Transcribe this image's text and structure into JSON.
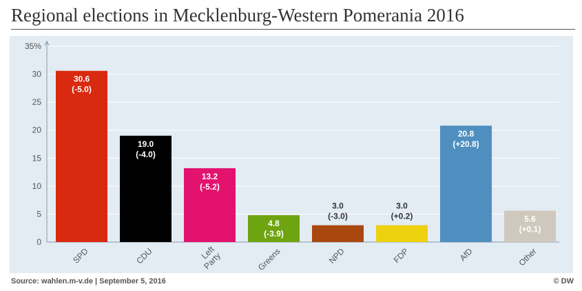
{
  "title": "Regional elections in Mecklenburg-Western Pomerania 2016",
  "footer": {
    "source": "Source: wahlen.m-v.de | September 5, 2016",
    "credit": "© DW"
  },
  "chart_data": {
    "type": "bar",
    "title": "Regional elections in Mecklenburg-Western Pomerania 2016",
    "ylim": [
      0,
      35
    ],
    "y_ticks": [
      "0",
      "5",
      "10",
      "15",
      "20",
      "25",
      "30",
      "35%"
    ],
    "y_tick_values": [
      0,
      5,
      10,
      15,
      20,
      25,
      30,
      35
    ],
    "grid": true,
    "categories": [
      "SPD",
      "CDU",
      "Left Party",
      "Greens",
      "NPD",
      "FDP",
      "AfD",
      "Other"
    ],
    "category_lines": [
      [
        "SPD"
      ],
      [
        "CDU"
      ],
      [
        "Left",
        "Party"
      ],
      [
        "Greens"
      ],
      [
        "NPD"
      ],
      [
        "FDP"
      ],
      [
        "AfD"
      ],
      [
        "Other"
      ]
    ],
    "values": [
      30.6,
      19.0,
      13.2,
      4.8,
      3.0,
      3.0,
      20.8,
      5.6
    ],
    "changes": [
      "(-5.0)",
      "(-4.0)",
      "(-5.2)",
      "(-3.9)",
      "(-3.0)",
      "(+0.2)",
      "(+20.8)",
      "(+0.1)"
    ],
    "value_labels": [
      "30.6",
      "19.0",
      "13.2",
      "4.8",
      "3.0",
      "3.0",
      "20.8",
      "5.6"
    ],
    "colors": [
      "#d9290f",
      "#000000",
      "#e2126e",
      "#6ea40f",
      "#a8480e",
      "#edd10f",
      "#4f8fbf",
      "#cfc8bc"
    ],
    "label_positions": [
      "inside",
      "inside",
      "inside",
      "inside",
      "above",
      "above",
      "inside",
      "inside"
    ]
  }
}
